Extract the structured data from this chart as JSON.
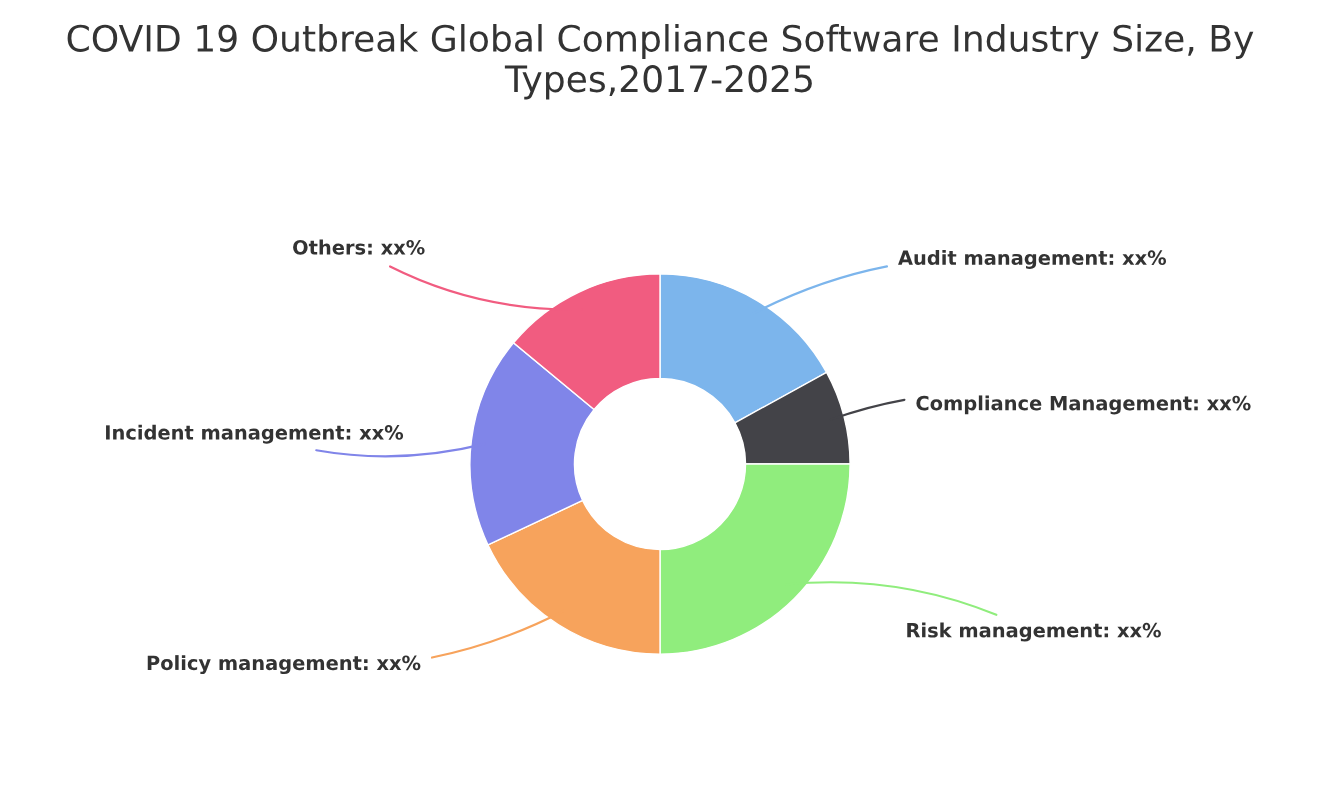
{
  "chart_data": {
    "type": "donut",
    "title": "COVID 19 Outbreak Global Compliance Software Industry Size, By Types,2017-2025",
    "categories": [
      "Audit management: xx%",
      "Compliance Management: xx%",
      "Risk management: xx%",
      "Policy management: xx%",
      "Incident management: xx%",
      "Others: xx%"
    ],
    "values": [
      17,
      8,
      25,
      18,
      18,
      14
    ],
    "colors": [
      "#7cb5ec",
      "#434348",
      "#90ed7d",
      "#f7a35c",
      "#8085e9",
      "#f15c80"
    ],
    "legend": false
  }
}
